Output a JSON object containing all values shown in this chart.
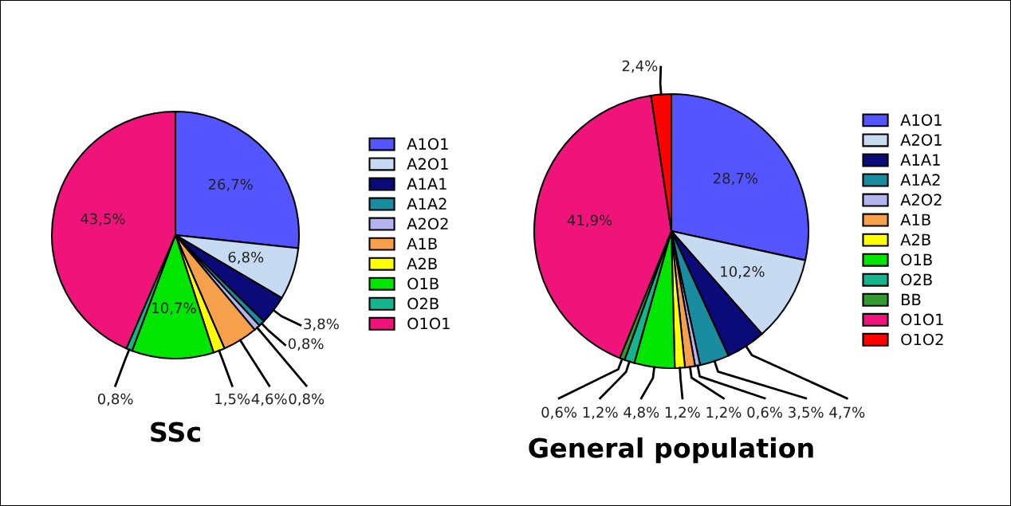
{
  "chart_data": [
    {
      "type": "pie",
      "title": "SSc",
      "legend": "right",
      "data_labels": true,
      "categories": [
        "A1O1",
        "A2O1",
        "A1A1",
        "A1A2",
        "A2O2",
        "A1B",
        "A2B",
        "O1B",
        "O2B",
        "O1O1"
      ],
      "values": [
        26.7,
        6.8,
        3.8,
        0.8,
        0.8,
        4.6,
        1.5,
        10.7,
        0.8,
        43.5
      ],
      "value_labels": [
        "26,7%",
        "6,8%",
        "3,8%",
        "0,8%",
        "0,8%",
        "4,6%",
        "1,5%",
        "10,7%",
        "0,8%",
        "43,5%"
      ],
      "colors": [
        "#5555ff",
        "#c6daf2",
        "#0a0a78",
        "#1a8ca0",
        "#b4b4f0",
        "#f7a04b",
        "#ffff00",
        "#00e600",
        "#14b48c",
        "#f0147a"
      ]
    },
    {
      "type": "pie",
      "title": "General population",
      "legend": "right",
      "data_labels": true,
      "categories": [
        "A1O1",
        "A2O1",
        "A1A1",
        "A1A2",
        "A2O2",
        "A1B",
        "A2B",
        "O1B",
        "O2B",
        "BB",
        "O1O1",
        "O1O2"
      ],
      "values": [
        28.7,
        10.2,
        4.7,
        3.5,
        0.6,
        1.2,
        1.2,
        4.8,
        1.2,
        0.6,
        41.9,
        2.4
      ],
      "value_labels": [
        "28,7%",
        "10,2%",
        "4,7%",
        "3,5%",
        "0,6%",
        "1,2%",
        "1,2%",
        "4,8%",
        "1,2%",
        "0,6%",
        "41,9%",
        "2,4%"
      ],
      "colors": [
        "#5555ff",
        "#c6daf2",
        "#0a0a78",
        "#1a8ca0",
        "#b4b4f0",
        "#f7a04b",
        "#ffff00",
        "#00e600",
        "#14b48c",
        "#339933",
        "#f0147a",
        "#ff0000"
      ]
    }
  ]
}
